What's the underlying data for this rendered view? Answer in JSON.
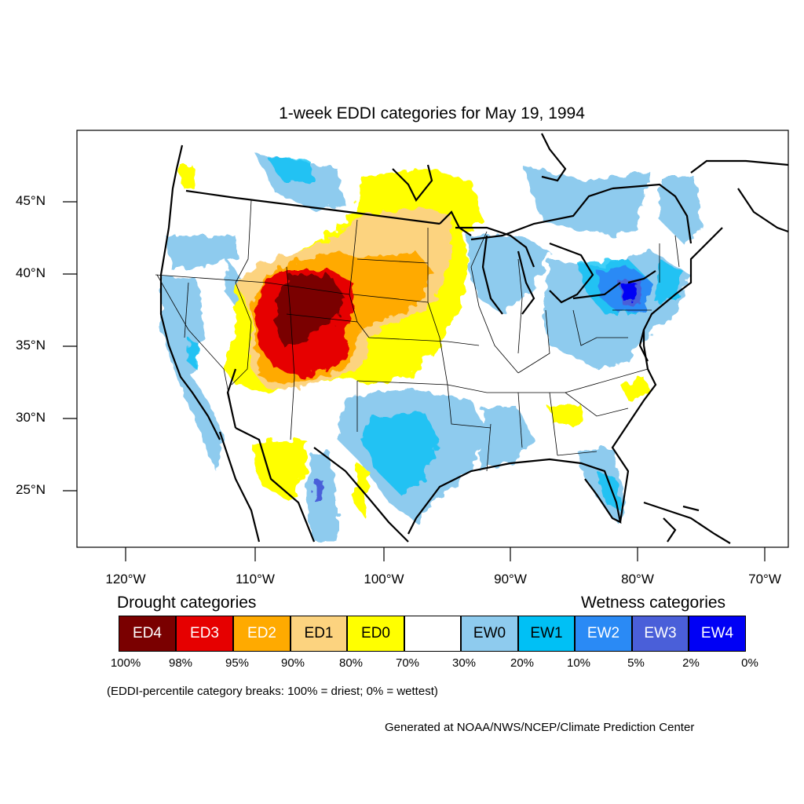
{
  "title": "1-week EDDI categories for May 19, 1994",
  "map": {
    "latitude_labels": [
      "45°N",
      "40°N",
      "35°N",
      "30°N",
      "25°N"
    ],
    "longitude_labels": [
      "120°W",
      "110°W",
      "100°W",
      "90°W",
      "80°W",
      "70°W"
    ]
  },
  "legend": {
    "drought_heading": "Drought categories",
    "wetness_heading": "Wetness categories",
    "categories": [
      {
        "label": "ED4",
        "color": "#7a0000",
        "text_color": "#ffffff"
      },
      {
        "label": "ED3",
        "color": "#e60000",
        "text_color": "#ffffff"
      },
      {
        "label": "ED2",
        "color": "#ffaa00",
        "text_color": "#ffffff"
      },
      {
        "label": "ED1",
        "color": "#fcd37f",
        "text_color": "#000000"
      },
      {
        "label": "ED0",
        "color": "#ffff00",
        "text_color": "#000000"
      },
      {
        "label": "",
        "color": "#ffffff",
        "text_color": "#000000"
      },
      {
        "label": "EW0",
        "color": "#8ecbee",
        "text_color": "#000000"
      },
      {
        "label": "EW1",
        "color": "#00c0f5",
        "text_color": "#000000"
      },
      {
        "label": "EW2",
        "color": "#2a8af5",
        "text_color": "#ffffff"
      },
      {
        "label": "EW3",
        "color": "#4a5fd9",
        "text_color": "#ffffff"
      },
      {
        "label": "EW4",
        "color": "#0000f5",
        "text_color": "#ffffff"
      }
    ],
    "breaks": [
      "100%",
      "98%",
      "95%",
      "90%",
      "80%",
      "70%",
      "30%",
      "20%",
      "10%",
      "5%",
      "2%",
      "0%"
    ]
  },
  "note": "(EDDI-percentile category breaks: 100% = driest; 0% = wettest)",
  "credit": "Generated at NOAA/NWS/NCEP/Climate Prediction Center"
}
